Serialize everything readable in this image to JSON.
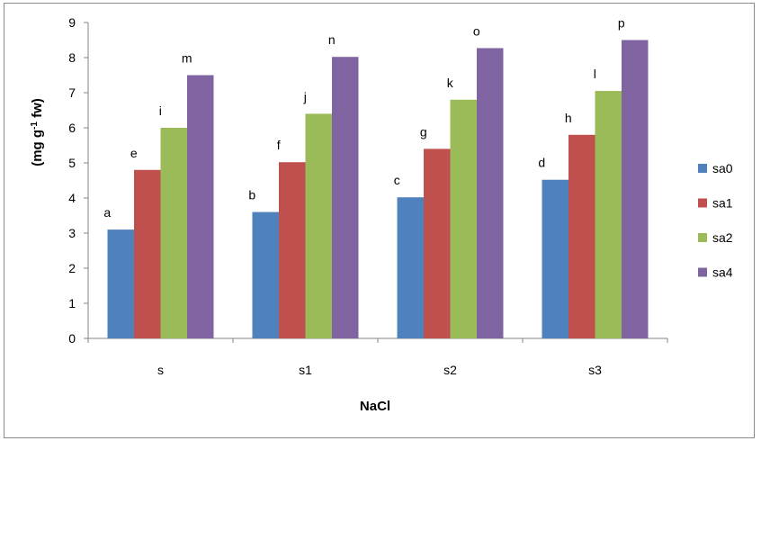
{
  "chart_data": {
    "type": "bar",
    "xlabel": "NaCl",
    "ylabel": "(mg g",
    "ylabel_sup": "-1",
    "ylabel_tail": " fw)",
    "categories": [
      "s",
      "s1",
      "s2",
      "s3"
    ],
    "ylim": [
      0,
      9
    ],
    "yticks": [
      0,
      1,
      2,
      3,
      4,
      5,
      6,
      7,
      8,
      9
    ],
    "grid": false,
    "legend_position": "right",
    "series": [
      {
        "name": "sa0",
        "color": "#4f81bd",
        "values": [
          3.1,
          3.6,
          4.02,
          4.52
        ],
        "labels": [
          "a",
          "b",
          "c",
          "d"
        ]
      },
      {
        "name": "sa1",
        "color": "#c0504d",
        "values": [
          4.8,
          5.02,
          5.4,
          5.8
        ],
        "labels": [
          "e",
          "f",
          "g",
          "h"
        ]
      },
      {
        "name": "sa2",
        "color": "#9bbb59",
        "values": [
          6.0,
          6.4,
          6.8,
          7.05
        ],
        "labels": [
          "i",
          "j",
          "k",
          "l"
        ]
      },
      {
        "name": "sa4",
        "color": "#8064a2",
        "values": [
          7.5,
          8.02,
          8.27,
          8.5
        ],
        "labels": [
          "m",
          "n",
          "o",
          "p"
        ]
      }
    ]
  }
}
